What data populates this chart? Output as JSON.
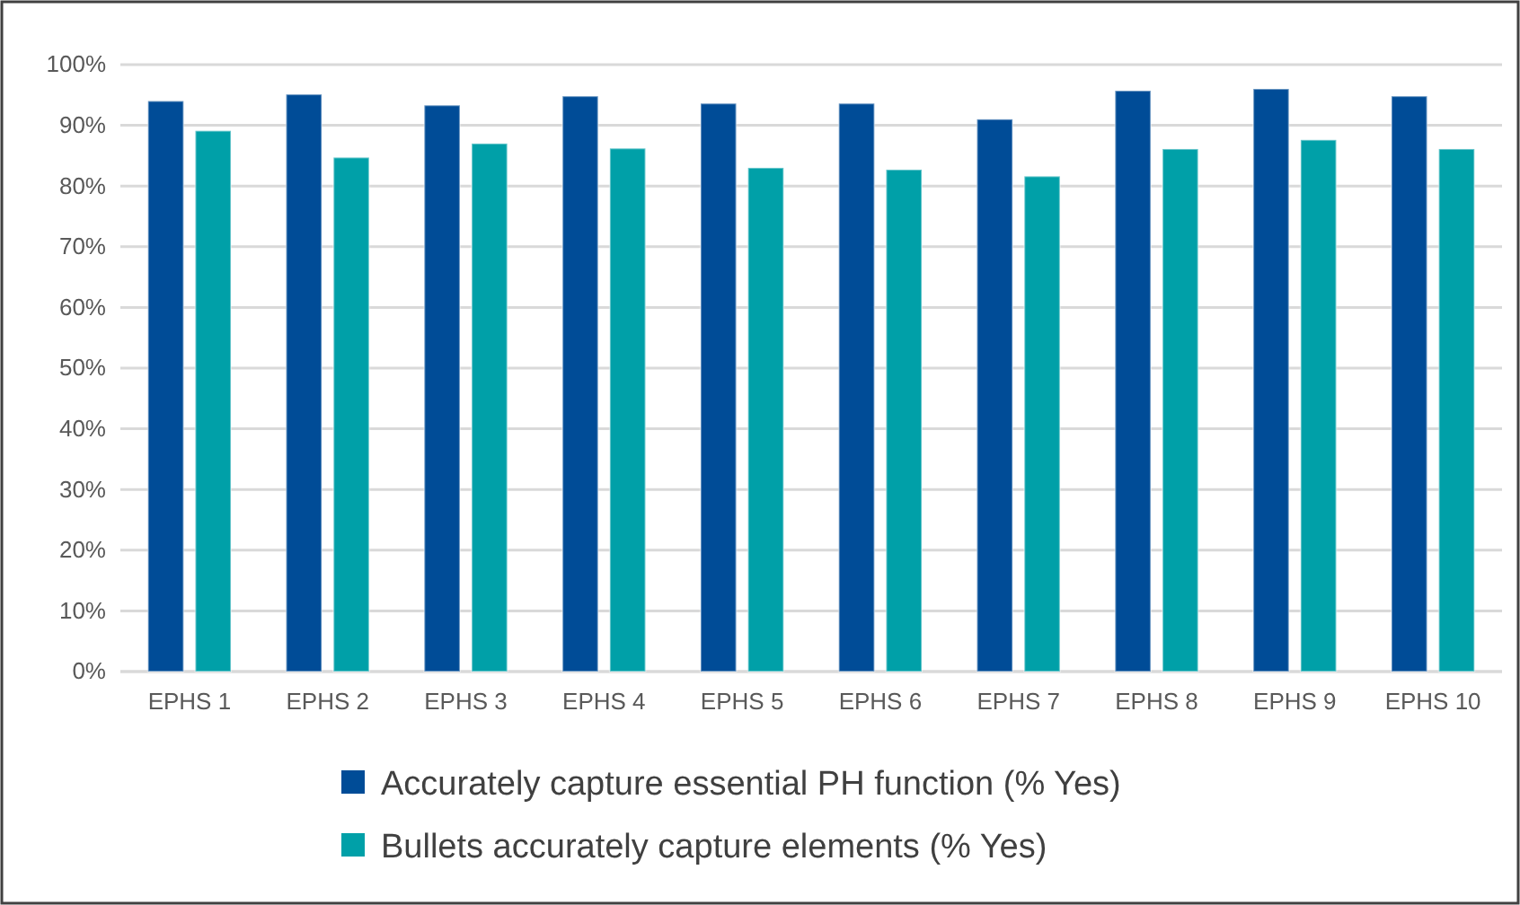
{
  "chart_data": {
    "type": "bar",
    "categories": [
      "EPHS 1",
      "EPHS 2",
      "EPHS 3",
      "EPHS 4",
      "EPHS 5",
      "EPHS 6",
      "EPHS 7",
      "EPHS 8",
      "EPHS 9",
      "EPHS 10"
    ],
    "series": [
      {
        "name": "Accurately capture essential PH function (% Yes)",
        "color": "#004c97",
        "values": [
          94.0,
          95.1,
          93.3,
          94.8,
          93.6,
          93.6,
          91.0,
          95.7,
          96.0,
          94.8
        ]
      },
      {
        "name": "Bullets accurately capture elements (% Yes)",
        "color": "#00a0a8",
        "values": [
          89.1,
          84.7,
          87.0,
          86.2,
          83.0,
          82.7,
          81.6,
          86.1,
          87.6,
          86.1
        ]
      }
    ],
    "ylim": [
      0,
      100
    ],
    "yticks": [
      {
        "value": 0,
        "label": "0%"
      },
      {
        "value": 10,
        "label": "10%"
      },
      {
        "value": 20,
        "label": "20%"
      },
      {
        "value": 30,
        "label": "30%"
      },
      {
        "value": 40,
        "label": "40%"
      },
      {
        "value": 50,
        "label": "50%"
      },
      {
        "value": 60,
        "label": "60%"
      },
      {
        "value": 70,
        "label": "70%"
      },
      {
        "value": 80,
        "label": "80%"
      },
      {
        "value": 90,
        "label": "90%"
      },
      {
        "value": 100,
        "label": "100%"
      }
    ],
    "grid": "y",
    "legend": "bottom"
  }
}
